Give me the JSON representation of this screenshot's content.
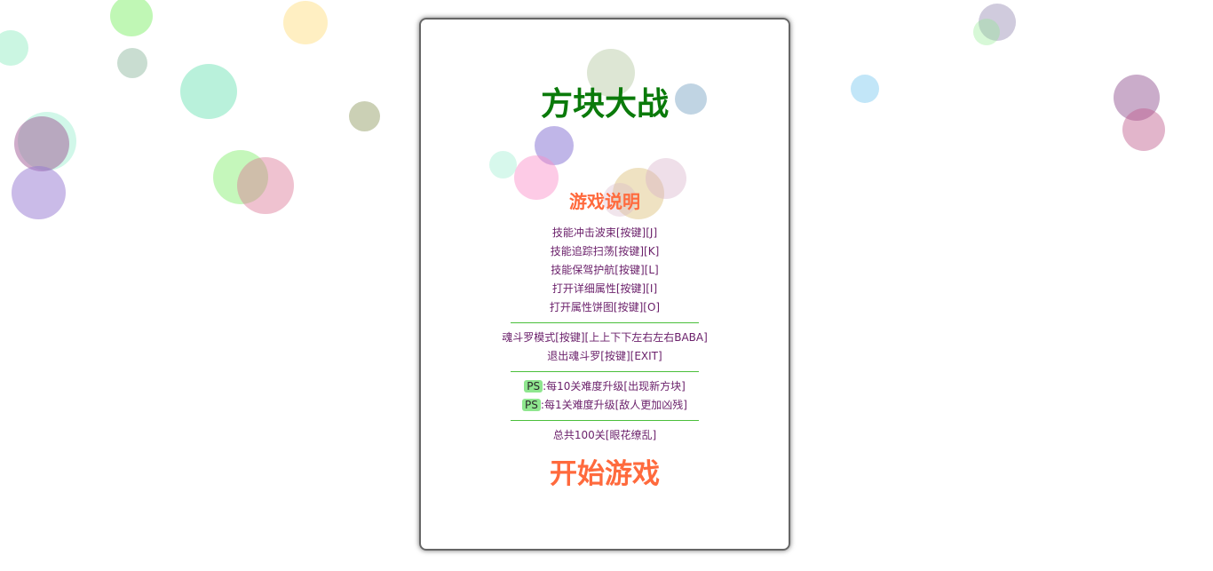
{
  "title": "方块大战",
  "instructions_title": "游戏说明",
  "controls": [
    "技能冲击波束[按键][J]",
    "技能追踪扫荡[按键][K]",
    "技能保驾护航[按键][L]",
    "打开详细属性[按键][I]",
    "打开属性饼图[按键][O]"
  ],
  "contra": [
    "魂斗罗模式[按键][上上下下左右左右BABA]",
    "退出魂斗罗[按键][EXIT]"
  ],
  "notes": [
    {
      "badge": "PS",
      "text": ":每10关难度升级[出现新方块]"
    },
    {
      "badge": "PS",
      "text": ":每1关难度升级[敌人更加凶残]"
    }
  ],
  "total": "总共100关[眼花缭乱]",
  "start_button": "开始游戏",
  "colors": {
    "title": "#0a7a0a",
    "accent": "#ff6a3d",
    "text": "#6a1f6a",
    "divider": "#4bbf3b",
    "badge": "#8fe68f"
  }
}
